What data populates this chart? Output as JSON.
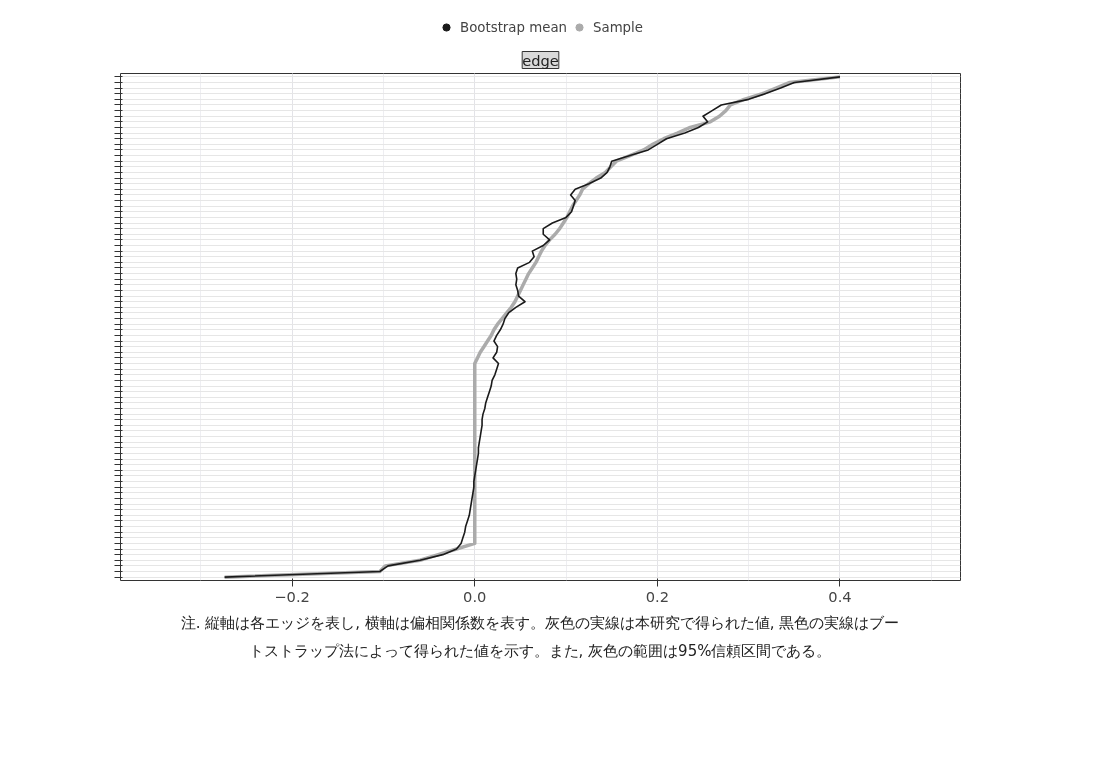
{
  "chart_data": {
    "type": "line",
    "orientation": "horizontal",
    "title": "edge",
    "categories": [
      null,
      null,
      null,
      null,
      null,
      null,
      null,
      null,
      null,
      null,
      null,
      null,
      null,
      null,
      null,
      null,
      null,
      null,
      null,
      null,
      null,
      null,
      null,
      null,
      null,
      null,
      null,
      null,
      null,
      null,
      null,
      null,
      null,
      null,
      null,
      null,
      null,
      null,
      null,
      null,
      null,
      null,
      null,
      null,
      null,
      null,
      null,
      null,
      null,
      null,
      null,
      null,
      null,
      null,
      null,
      null,
      null,
      null,
      null,
      null,
      null,
      null,
      null,
      null,
      null,
      null,
      null,
      null,
      null,
      null,
      null,
      null,
      null,
      null,
      null,
      null,
      null,
      null,
      null,
      null,
      null,
      null,
      null,
      null,
      null,
      null,
      null,
      null,
      null,
      null
    ],
    "series": [
      {
        "name": "Bootstrap mean",
        "color": "#1a1a1a",
        "values": [
          0.4,
          0.35,
          0.335,
          0.318,
          0.3,
          0.27,
          0.26,
          0.25,
          0.255,
          0.245,
          0.23,
          0.21,
          0.2,
          0.19,
          0.17,
          0.15,
          0.148,
          0.145,
          0.138,
          0.125,
          0.11,
          0.105,
          0.11,
          0.108,
          0.106,
          0.1,
          0.085,
          0.075,
          0.075,
          0.082,
          0.075,
          0.063,
          0.065,
          0.06,
          0.047,
          0.045,
          0.046,
          0.045,
          0.047,
          0.048,
          0.055,
          0.045,
          0.037,
          0.033,
          0.031,
          0.028,
          0.024,
          0.021,
          0.025,
          0.024,
          0.02,
          0.026,
          0.024,
          0.022,
          0.019,
          0.018,
          0.016,
          0.014,
          0.012,
          0.011,
          0.009,
          0.008,
          0.008,
          0.007,
          0.006,
          0.005,
          0.004,
          0.004,
          0.003,
          0.002,
          0.001,
          0.0,
          -0.001,
          -0.001,
          -0.002,
          -0.003,
          -0.004,
          -0.005,
          -0.006,
          -0.008,
          -0.01,
          -0.011,
          -0.013,
          -0.015,
          -0.02,
          -0.035,
          -0.06,
          -0.095,
          -0.104,
          -0.274
        ]
      },
      {
        "name": "Sample",
        "color": "#ababab",
        "values": [
          0.4,
          0.345,
          0.33,
          0.315,
          0.295,
          0.28,
          0.275,
          0.268,
          0.258,
          0.236,
          0.222,
          0.207,
          0.195,
          0.185,
          0.17,
          0.155,
          0.149,
          0.143,
          0.133,
          0.125,
          0.118,
          0.115,
          0.111,
          0.107,
          0.104,
          0.101,
          0.097,
          0.093,
          0.088,
          0.082,
          0.077,
          0.073,
          0.07,
          0.067,
          0.063,
          0.059,
          0.056,
          0.053,
          0.05,
          0.047,
          0.044,
          0.04,
          0.035,
          0.03,
          0.025,
          0.021,
          0.018,
          0.014,
          0.01,
          0.006,
          0.003,
          0,
          0,
          0,
          0,
          0,
          0,
          0,
          0,
          0,
          0,
          0,
          0,
          0,
          0,
          0,
          0,
          0,
          0,
          0,
          0,
          0,
          0,
          0,
          0,
          0,
          0,
          0,
          0,
          0,
          0,
          0,
          0,
          0,
          -0.02,
          -0.04,
          -0.06,
          -0.098,
          -0.104,
          -0.274
        ]
      }
    ],
    "xlim": [
      -0.388,
      0.532
    ],
    "xticks": [
      {
        "value": -0.2,
        "label": "−0.2"
      },
      {
        "value": 0,
        "label": "0.0"
      },
      {
        "value": 0.2,
        "label": "0.2"
      },
      {
        "value": 0.4,
        "label": "0.4"
      }
    ],
    "grid": true,
    "legend": "top",
    "marker": "none",
    "line_style": "solid",
    "annotations": [
      "注. 縦軸は各エッジを表し, 横軸は偏相関係数を表す。灰色の実線は本研究で得られた値, 黒色の実線はブートストラップ法によって得られた値を示す。また, 灰色の範囲は95%信頼区間である。"
    ]
  }
}
